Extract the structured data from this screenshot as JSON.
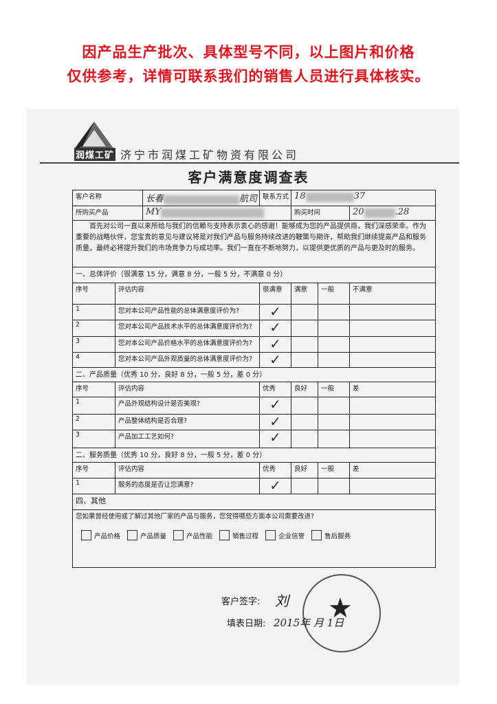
{
  "notice": {
    "line1": "因产品生产批次、具体型号不同，以上图片和价格",
    "line2": "仅供参考，详情可联系我们的销售人员进行具体核实。",
    "color": "#e0141e"
  },
  "header": {
    "logo_text": "润煤工矿",
    "company": "济宁市润煤工矿物资有限公司",
    "title": "客户满意度调查表"
  },
  "info": {
    "customer_name_label": "客户名称",
    "customer_name_start": "长春",
    "customer_name_end": "航司",
    "contact_label": "联系方式",
    "contact_start": "18",
    "contact_end": "37",
    "product_label": "所购买产品",
    "product_start": "MY",
    "purchase_time_label": "购买时间",
    "purchase_time_start": "20",
    "purchase_time_end": ".28"
  },
  "intro": "首先对公司一直以来所给与我们的信赖与支持表示衷心的感谢！能够成为您的产品提供商，我们深感荣幸。作为重要的战略伙伴，您宝贵的意见与建议将是对我们产品与服务持续改进的鞭策与期许，帮助我们继续提高产品和服务质量，最终必将提升我们的市场竞争力与成功率。我们一直在不断地努力，以提供更优质的产品与更及时的服务。",
  "sections": [
    {
      "title": "一、总体评价（很满意 15 分，满意 8 分，一般 5 分，不满意 0 分）",
      "headers": [
        "序号",
        "评估内容",
        "很满意",
        "满意",
        "一般",
        "不满意"
      ],
      "rows": [
        {
          "no": "1",
          "q": "您对本公司产品性能的总体满意度评价为?",
          "choice": 0
        },
        {
          "no": "2",
          "q": "您对本公司产品技术水平的总体满意度评价为?",
          "choice": 0
        },
        {
          "no": "3",
          "q": "您对本公司产品价格水平的总体满意度评价为?",
          "choice": 0
        },
        {
          "no": "4",
          "q": "您对本公司产品外观质量的总体满意度评价为?",
          "choice": 0
        }
      ]
    },
    {
      "title": "二、产品质量（优秀 10 分，良好 8 分，一般 5 分，差 0 分）",
      "headers": [
        "序号",
        "评估内容",
        "优秀",
        "良好",
        "一般",
        "差"
      ],
      "rows": [
        {
          "no": "1",
          "q": "产品外观结构设计是否美观?",
          "choice": 0
        },
        {
          "no": "2",
          "q": "产品整体结构是否合理?",
          "choice": 0
        },
        {
          "no": "3",
          "q": "产品加工工艺如何?",
          "choice": 0
        }
      ]
    },
    {
      "title": "二、服务质量（优秀 10 分，良好 8 分，一般 5 分，差 0 分）",
      "headers": [
        "序号",
        "评估内容",
        "优秀",
        "良好",
        "一般",
        "差"
      ],
      "rows": [
        {
          "no": "1",
          "q": "服务的态度是否让您满意?",
          "choice": 0
        }
      ]
    }
  ],
  "check_mark": "✓",
  "other": {
    "title": "四、其他",
    "question": "您如果曾经使用或了解过其他厂家的产品与服务，您觉得哪些方面本公司需要改进?",
    "options": [
      "产品价格",
      "产品质量",
      "产品性能",
      "销售过程",
      "企业信誉",
      "售后服务"
    ]
  },
  "signature": {
    "sign_label": "客户签字:",
    "sign_value": "刘",
    "date_label": "填表日期:",
    "date_value": "2015年  月 1日"
  }
}
